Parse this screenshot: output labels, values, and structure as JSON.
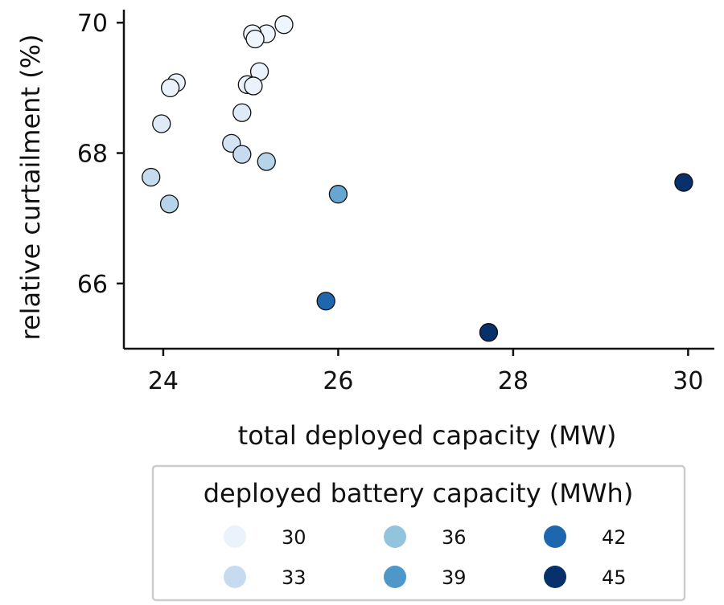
{
  "chart_data": {
    "type": "scatter",
    "xlabel": "total deployed capacity (MW)",
    "ylabel": "relative curtailment (%)",
    "xlim": [
      23.55,
      30.3
    ],
    "ylim": [
      65.0,
      70.2
    ],
    "xticks": [
      24,
      26,
      28,
      30
    ],
    "yticks": [
      66,
      68,
      70
    ],
    "grid": false,
    "color_legend": {
      "title": "deployed battery capacity (MWh)",
      "placement": "bottom",
      "entries": [
        {
          "label": "30",
          "value": 30,
          "color": "#eaf2fb"
        },
        {
          "label": "33",
          "value": 33,
          "color": "#c6dbef"
        },
        {
          "label": "36",
          "value": 36,
          "color": "#93c4de"
        },
        {
          "label": "39",
          "value": 39,
          "color": "#4e98c9"
        },
        {
          "label": "42",
          "value": 42,
          "color": "#1e66ae"
        },
        {
          "label": "45",
          "value": 45,
          "color": "#08306b"
        }
      ]
    },
    "points": [
      {
        "x": 25.38,
        "y": 69.97,
        "c": 29
      },
      {
        "x": 25.18,
        "y": 69.83,
        "c": 29
      },
      {
        "x": 25.02,
        "y": 69.83,
        "c": 29
      },
      {
        "x": 25.05,
        "y": 69.75,
        "c": 29
      },
      {
        "x": 25.1,
        "y": 69.25,
        "c": 30
      },
      {
        "x": 24.96,
        "y": 69.05,
        "c": 30
      },
      {
        "x": 25.03,
        "y": 69.03,
        "c": 30
      },
      {
        "x": 24.15,
        "y": 69.08,
        "c": 30
      },
      {
        "x": 24.08,
        "y": 69.0,
        "c": 30
      },
      {
        "x": 24.9,
        "y": 68.62,
        "c": 31
      },
      {
        "x": 23.98,
        "y": 68.45,
        "c": 31
      },
      {
        "x": 24.78,
        "y": 68.15,
        "c": 32
      },
      {
        "x": 24.9,
        "y": 67.98,
        "c": 33
      },
      {
        "x": 25.18,
        "y": 67.87,
        "c": 34
      },
      {
        "x": 23.86,
        "y": 67.63,
        "c": 33
      },
      {
        "x": 24.07,
        "y": 67.22,
        "c": 34
      },
      {
        "x": 26.0,
        "y": 67.37,
        "c": 38
      },
      {
        "x": 25.86,
        "y": 65.73,
        "c": 42
      },
      {
        "x": 27.72,
        "y": 65.25,
        "c": 46
      },
      {
        "x": 29.95,
        "y": 67.55,
        "c": 46
      }
    ]
  }
}
